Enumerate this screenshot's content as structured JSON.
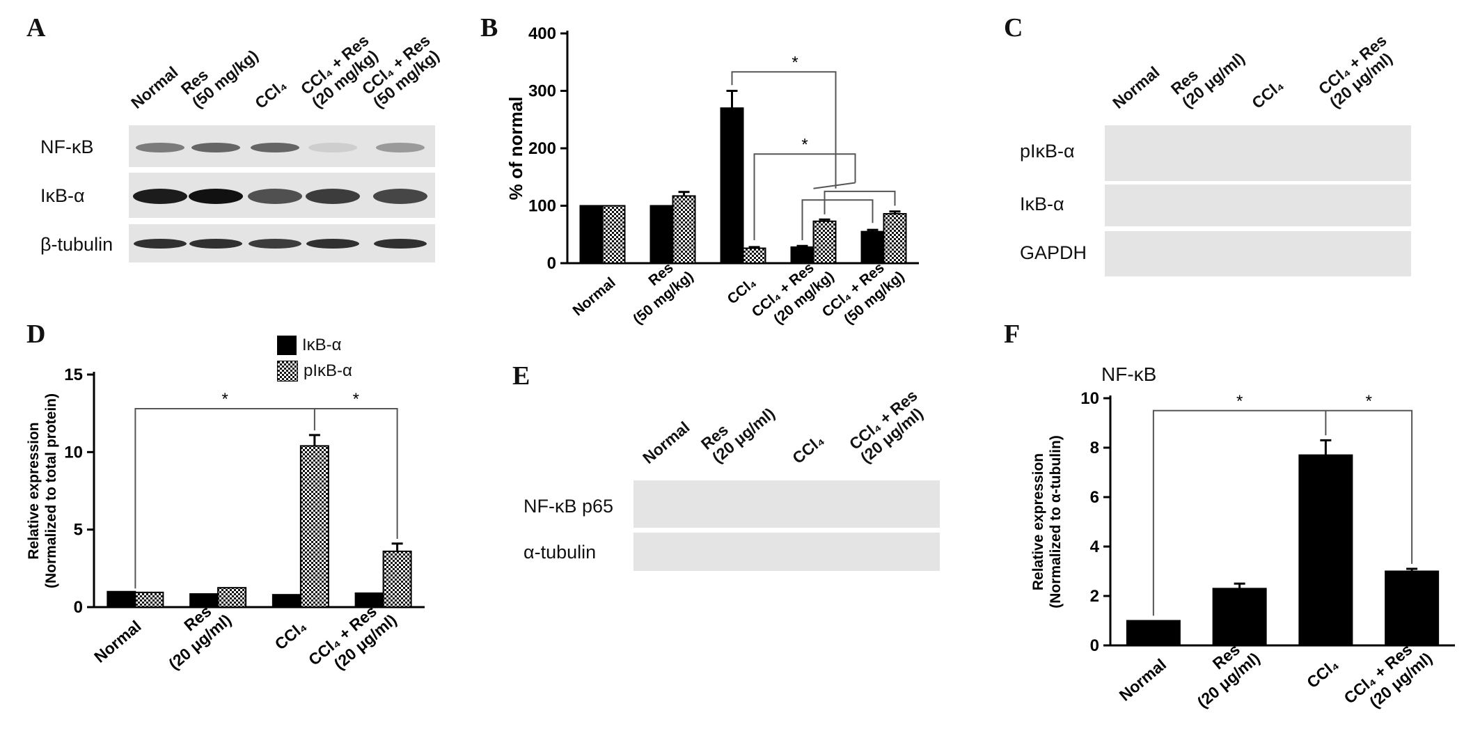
{
  "panels": {
    "A": {
      "letter": "A",
      "lanes": [
        "Normal",
        "Res\n(50 mg/kg)",
        "CCl₄",
        "CCl₄ + Res\n(20 mg/kg)",
        "CCl₄ + Res\n(50 mg/kg)"
      ],
      "rows": [
        "NF-κB",
        "IκB-α",
        "β-tubulin"
      ]
    },
    "C": {
      "letter": "C",
      "lanes": [
        "Normal",
        "Res\n(20 μg/ml)",
        "CCl₄",
        "CCl₄ + Res\n(20 μg/ml)"
      ],
      "rows": [
        "pIκB-α",
        "IκB-α",
        "GAPDH"
      ]
    },
    "E": {
      "letter": "E",
      "lanes": [
        "Normal",
        "Res\n(20 μg/ml)",
        "CCl₄",
        "CCl₄ + Res\n(20 μg/ml)"
      ],
      "rows": [
        "NF-κB p65",
        "α-tubulin"
      ]
    }
  },
  "chart_data": [
    {
      "letter": "B",
      "type": "bar",
      "categories": [
        "Normal",
        "Res\n(50 mg/kg)",
        "CCl₄",
        "CCl₄ + Res\n(20 mg/kg)",
        "CCl₄ + Res\n(50 mg/kg)"
      ],
      "series": [
        {
          "fill": "solid",
          "values": [
            100,
            100,
            270,
            28,
            55
          ],
          "errors": [
            0,
            0,
            30,
            2,
            3
          ]
        },
        {
          "fill": "checker",
          "values": [
            100,
            117,
            26,
            73,
            86
          ],
          "errors": [
            0,
            7,
            2,
            3,
            4
          ]
        }
      ],
      "ylabel": "% of normal",
      "ylim": [
        0,
        400
      ],
      "yticks": [
        0,
        100,
        200,
        300,
        400
      ],
      "significance": "*"
    },
    {
      "letter": "D",
      "type": "bar",
      "categories": [
        "Normal",
        "Res\n(20 μg/ml)",
        "CCl₄",
        "CCl₄ + Res\n(20 μg/ml)"
      ],
      "series": [
        {
          "name": "IκB-α",
          "fill": "solid",
          "values": [
            1.0,
            0.85,
            0.8,
            0.9
          ],
          "errors": [
            0,
            0,
            0,
            0
          ]
        },
        {
          "name": "pIκB-α",
          "fill": "checker",
          "values": [
            0.95,
            1.25,
            10.4,
            3.6
          ],
          "errors": [
            0,
            0,
            0.7,
            0.5
          ]
        }
      ],
      "ylabel": "Relative expression\n(Normalized to total protein)",
      "ylim": [
        0,
        15
      ],
      "yticks": [
        0,
        5,
        10,
        15
      ],
      "significance": "*"
    },
    {
      "letter": "F",
      "type": "bar",
      "title": "NF-κB",
      "categories": [
        "Normal",
        "Res\n(20 μg/ml)",
        "CCl₄",
        "CCl₄ + Res\n(20 μg/ml)"
      ],
      "series": [
        {
          "fill": "solid",
          "values": [
            1.0,
            2.3,
            7.7,
            3.0
          ],
          "errors": [
            0,
            0.2,
            0.6,
            0.1
          ]
        }
      ],
      "ylabel": "Relative expression\n(Normalized to α-tubulin)",
      "ylim": [
        0,
        10
      ],
      "yticks": [
        0,
        2,
        4,
        6,
        8,
        10
      ],
      "significance": "*"
    }
  ],
  "colors": {
    "bar": "#000000",
    "checker_a": "#ffffff",
    "checker_b": "#111111",
    "blot_bg": "#e2e2e2"
  }
}
